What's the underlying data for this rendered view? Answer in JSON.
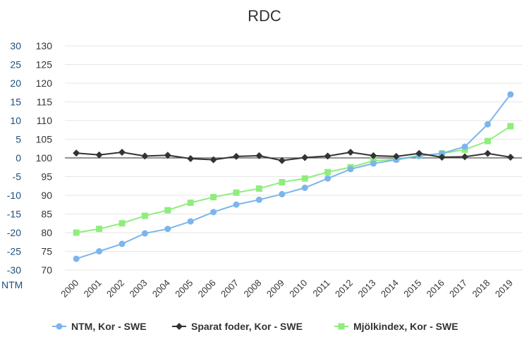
{
  "chart_data": {
    "type": "line",
    "title": "RDC",
    "xlabel": "",
    "ylabel": "",
    "left_axis": {
      "unit_label": "NTM",
      "ticks": [
        "30",
        "25",
        "20",
        "15",
        "10",
        "5",
        "0",
        "-5",
        "-10",
        "-15",
        "-20",
        "-25",
        "-30"
      ],
      "range": [
        -30,
        30
      ]
    },
    "right_axis": {
      "ticks": [
        "130",
        "125",
        "120",
        "115",
        "110",
        "105",
        "100",
        "95",
        "90",
        "85",
        "80",
        "75",
        "70"
      ],
      "range": [
        70,
        130
      ]
    },
    "ylim": [
      70,
      130
    ],
    "reference_line": 100,
    "grid": true,
    "legend_position": "bottom",
    "categories": [
      "2000",
      "2001",
      "2002",
      "2003",
      "2004",
      "2005",
      "2006",
      "2007",
      "2008",
      "2009",
      "2010",
      "2011",
      "2012",
      "2013",
      "2014",
      "2015",
      "2016",
      "2017",
      "2018",
      "2019"
    ],
    "series": [
      {
        "name": "NTM, Kor - SWE",
        "color": "#7cb5ec",
        "marker": "circle",
        "values": [
          73.0,
          75.0,
          77.0,
          79.8,
          81.0,
          83.0,
          85.5,
          87.5,
          88.8,
          90.3,
          92.0,
          94.5,
          97.0,
          98.5,
          99.5,
          100.5,
          101.2,
          103.0,
          109.0,
          117.0
        ]
      },
      {
        "name": "Sparat foder, Kor - SWE",
        "color": "#333333",
        "marker": "diamond",
        "values": [
          101.3,
          100.8,
          101.5,
          100.5,
          100.7,
          99.8,
          99.5,
          100.4,
          100.6,
          99.3,
          100.1,
          100.5,
          101.5,
          100.6,
          100.4,
          101.2,
          100.2,
          100.3,
          101.2,
          100.2
        ]
      },
      {
        "name": "Mjölkindex, Kor - SWE",
        "color": "#90ed7d",
        "marker": "square",
        "values": [
          80.0,
          81.0,
          82.5,
          84.5,
          86.0,
          88.0,
          89.5,
          90.7,
          91.8,
          93.5,
          94.5,
          96.2,
          97.5,
          99.2,
          99.7,
          100.6,
          101.2,
          102.2,
          104.5,
          108.5
        ]
      }
    ]
  }
}
